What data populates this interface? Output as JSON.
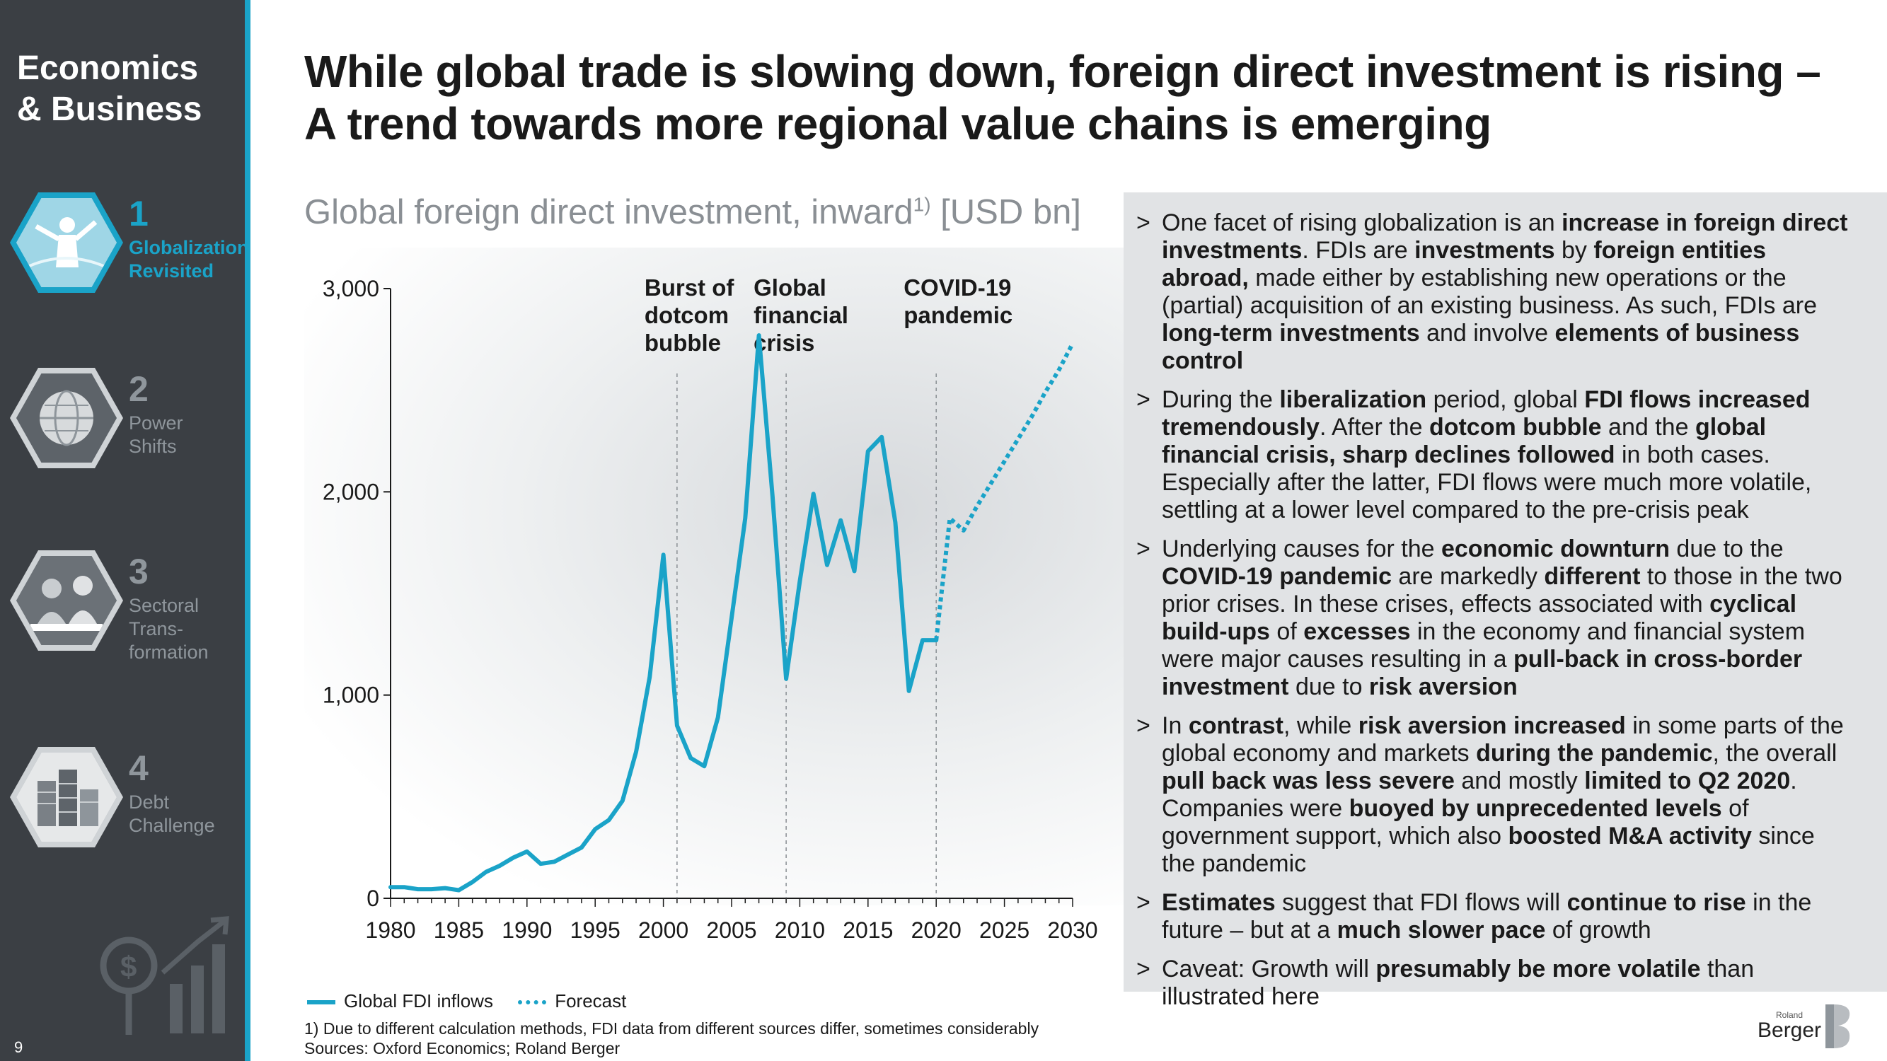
{
  "sidebar": {
    "title_line1": "Economics",
    "title_line2": "& Business",
    "items": [
      {
        "num": "1",
        "label_line1": "Globalization",
        "label_line2": "Revisited",
        "label_line3": "",
        "icon": "globalization-icon",
        "active": true
      },
      {
        "num": "2",
        "label_line1": "Power",
        "label_line2": "Shifts",
        "label_line3": "",
        "icon": "globe-icon",
        "active": false
      },
      {
        "num": "3",
        "label_line1": "Sectoral",
        "label_line2": "Trans-",
        "label_line3": "formation",
        "icon": "people-icon",
        "active": false
      },
      {
        "num": "4",
        "label_line1": "Debt",
        "label_line2": "Challenge",
        "label_line3": "",
        "icon": "coins-icon",
        "active": false
      }
    ],
    "page_number": "9",
    "deco_icon": "growth-chart-icon"
  },
  "title": {
    "line1": "While global trade is slowing down, foreign direct investment is rising –",
    "line2": "A trend towards more regional value chains is emerging"
  },
  "chart_heading": {
    "text": "Global foreign direct investment, inward",
    "sup": "1)",
    "unit": " [USD bn]"
  },
  "chart_data": {
    "type": "line",
    "title": "Global foreign direct investment, inward1) [USD bn]",
    "xlabel": "",
    "ylabel": "USD bn",
    "xlim": [
      1980,
      2030
    ],
    "ylim": [
      0,
      3000
    ],
    "x_ticks": [
      1980,
      1985,
      1990,
      1995,
      2000,
      2005,
      2010,
      2015,
      2020,
      2025,
      2030
    ],
    "y_ticks": [
      0,
      1000,
      2000,
      3000
    ],
    "y_tick_labels": [
      "0",
      "1,000",
      "2,000",
      "3,000"
    ],
    "grid": false,
    "legend_position": "bottom-left",
    "series": [
      {
        "name": "Global FDI inflows",
        "style": "solid",
        "color": "#1aa3c8",
        "x": [
          1980,
          1981,
          1982,
          1983,
          1984,
          1985,
          1986,
          1987,
          1988,
          1989,
          1990,
          1991,
          1992,
          1993,
          1994,
          1995,
          1996,
          1997,
          1998,
          1999,
          2000,
          2001,
          2002,
          2003,
          2004,
          2005,
          2006,
          2007,
          2008,
          2009,
          2010,
          2011,
          2012,
          2013,
          2014,
          2015,
          2016,
          2017,
          2018,
          2019,
          2020
        ],
        "values": [
          55,
          55,
          45,
          45,
          50,
          40,
          80,
          130,
          160,
          200,
          230,
          170,
          180,
          215,
          250,
          340,
          385,
          480,
          720,
          1090,
          1690,
          850,
          690,
          650,
          890,
          1380,
          1870,
          2770,
          1980,
          1080,
          1560,
          1990,
          1640,
          1860,
          1610,
          2200,
          2270,
          1850,
          1020,
          1270,
          1270
        ]
      },
      {
        "name": "Forecast",
        "style": "dotted",
        "color": "#1aa3c8",
        "x": [
          2020,
          2021,
          2022,
          2023,
          2024,
          2025,
          2026,
          2027,
          2028,
          2029,
          2030
        ],
        "values": [
          1270,
          1870,
          1810,
          1930,
          2040,
          2150,
          2260,
          2370,
          2490,
          2600,
          2730
        ]
      }
    ],
    "annotations": [
      {
        "x": 2001,
        "lines": [
          "Burst of",
          "dotcom",
          "bubble"
        ]
      },
      {
        "x": 2009,
        "lines": [
          "Global",
          "financial",
          "crisis"
        ]
      },
      {
        "x": 2020,
        "lines": [
          "COVID-19",
          "pandemic"
        ]
      }
    ]
  },
  "legend": {
    "solid_label": "Global FDI inflows",
    "dotted_label": "Forecast"
  },
  "footnote": {
    "note": "1) Due to different calculation methods, FDI data from different sources differ, sometimes considerably",
    "sources": "Sources: Oxford Economics; Roland Berger"
  },
  "bullets": [
    [
      {
        "t": "One facet of rising globalization is an "
      },
      {
        "t": "increase in foreign direct investments",
        "b": true
      },
      {
        "t": ". FDIs are "
      },
      {
        "t": "investments",
        "b": true
      },
      {
        "t": " by "
      },
      {
        "t": "foreign entities abroad,",
        "b": true
      },
      {
        "t": " made either by establishing new operations or the (partial) acquisition of an existing business. As such, FDIs are "
      },
      {
        "t": "long-term investments",
        "b": true
      },
      {
        "t": " and involve "
      },
      {
        "t": "elements of business control",
        "b": true
      }
    ],
    [
      {
        "t": "During the "
      },
      {
        "t": "liberalization",
        "b": true
      },
      {
        "t": " period, global "
      },
      {
        "t": "FDI flows increased tremendously",
        "b": true
      },
      {
        "t": ". After the "
      },
      {
        "t": "dotcom bubble",
        "b": true
      },
      {
        "t": " and the "
      },
      {
        "t": "global financial crisis, sharp declines followed",
        "b": true
      },
      {
        "t": " in both cases. Especially after the latter, FDI flows were much more volatile, settling at a lower level compared to the pre-crisis peak"
      }
    ],
    [
      {
        "t": "Underlying causes for the "
      },
      {
        "t": "economic downturn",
        "b": true
      },
      {
        "t": " due to the "
      },
      {
        "t": "COVID-19 pandemic",
        "b": true
      },
      {
        "t": " are markedly "
      },
      {
        "t": "different",
        "b": true
      },
      {
        "t": " to those in the two prior crises. In these crises, effects associated with "
      },
      {
        "t": "cyclical build-ups",
        "b": true
      },
      {
        "t": " of "
      },
      {
        "t": "excesses",
        "b": true
      },
      {
        "t": " in the economy and financial system were major causes resulting in a "
      },
      {
        "t": "pull-back in cross-border investment",
        "b": true
      },
      {
        "t": " due to "
      },
      {
        "t": "risk aversion",
        "b": true
      }
    ],
    [
      {
        "t": "In "
      },
      {
        "t": "contrast",
        "b": true
      },
      {
        "t": ", while "
      },
      {
        "t": "risk aversion increased",
        "b": true
      },
      {
        "t": " in some parts of the global economy and markets "
      },
      {
        "t": "during the pandemic",
        "b": true
      },
      {
        "t": ", the overall "
      },
      {
        "t": "pull back was less severe",
        "b": true
      },
      {
        "t": " and mostly "
      },
      {
        "t": "limited to Q2 2020",
        "b": true
      },
      {
        "t": ". Companies were "
      },
      {
        "t": "buoyed by unprecedented levels",
        "b": true
      },
      {
        "t": " of government support, which also "
      },
      {
        "t": "boosted M&A activity",
        "b": true
      },
      {
        "t": " since the pandemic"
      }
    ],
    [
      {
        "t": "Estimates",
        "b": true
      },
      {
        "t": " suggest that FDI flows will "
      },
      {
        "t": "continue to rise",
        "b": true
      },
      {
        "t": " in the future – but at a "
      },
      {
        "t": "much slower pace",
        "b": true
      },
      {
        "t": " of growth"
      }
    ],
    [
      {
        "t": "Caveat: Growth will "
      },
      {
        "t": "presumably be more volatile",
        "b": true
      },
      {
        "t": " than illustrated here"
      }
    ]
  ],
  "bullet_marker": ">",
  "logo": {
    "small": "Roland",
    "name": "Berger",
    "icon": "roland-berger-logo-icon"
  },
  "colors": {
    "accent": "#1aa3c8",
    "sidebar": "#3b3f44",
    "panel": "#e1e3e5"
  }
}
